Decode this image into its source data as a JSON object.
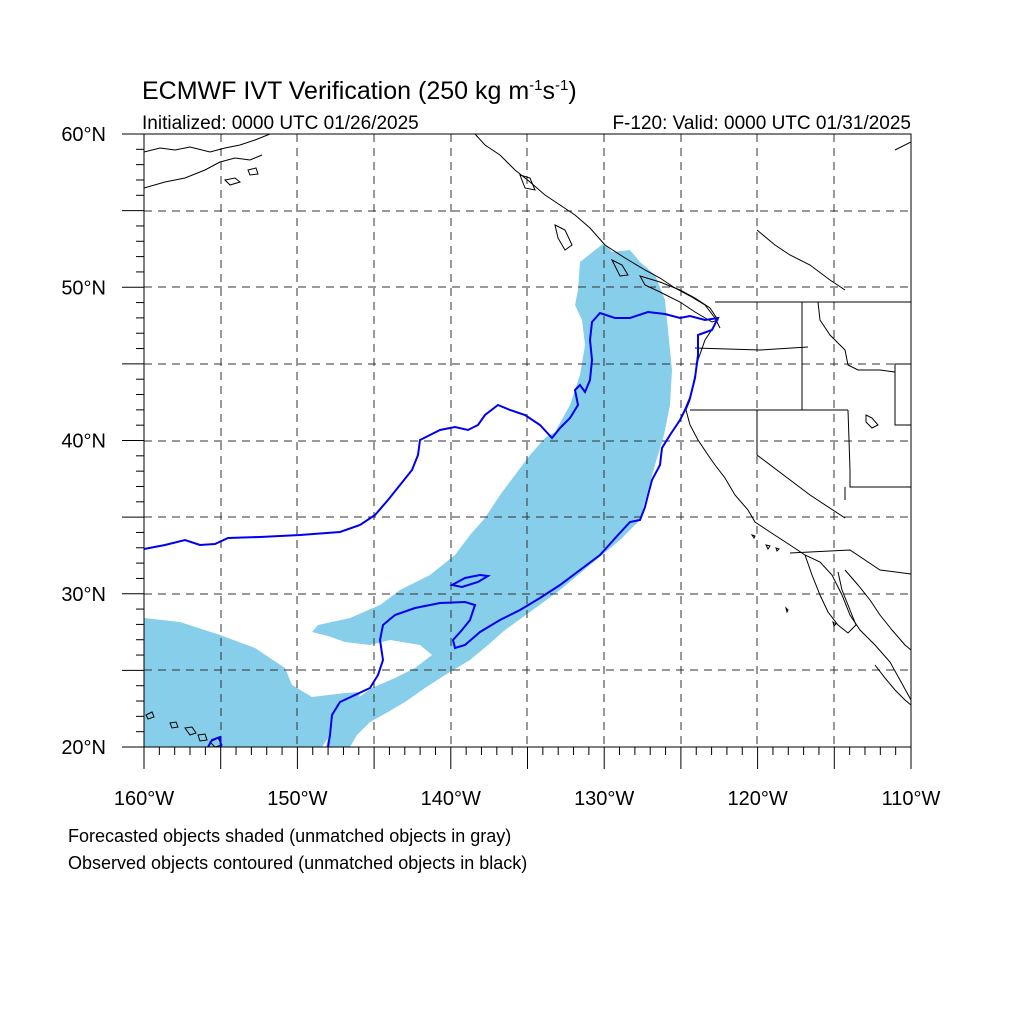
{
  "title": {
    "main": "ECMWF IVT Verification (250 kg m",
    "sup1": "-1",
    "mid": "s",
    "sup2": "-1",
    "end": ")"
  },
  "init_text": "Initialized: 0000 UTC 01/26/2025",
  "valid_text": "F-120: Valid: 0000 UTC 01/31/2025",
  "map": {
    "lon_min": -160,
    "lon_max": -110,
    "lat_min": 20,
    "lat_max": 60,
    "lon_labels": [
      {
        "lon": -160,
        "label": "160°W"
      },
      {
        "lon": -150,
        "label": "150°W"
      },
      {
        "lon": -140,
        "label": "140°W"
      },
      {
        "lon": -130,
        "label": "130°W"
      },
      {
        "lon": -120,
        "label": "120°W"
      },
      {
        "lon": -110,
        "label": "110°W"
      }
    ],
    "lat_labels": [
      {
        "lat": 20,
        "label": "20°N"
      },
      {
        "lat": 30,
        "label": "30°N"
      },
      {
        "lat": 40,
        "label": "40°N"
      },
      {
        "lat": 50,
        "label": "50°N"
      },
      {
        "lat": 60,
        "label": "60°N"
      }
    ],
    "grid": "dashed every 5°",
    "colors": {
      "forecast_fill": "#87ceeb",
      "observed_contour": "#0000ee",
      "coastline": "#000000",
      "grid": "#333333"
    }
  },
  "legend": {
    "line1": "Forecasted objects shaded (unmatched objects in gray)",
    "line2": "Observed objects contoured (unmatched objects in black)"
  }
}
